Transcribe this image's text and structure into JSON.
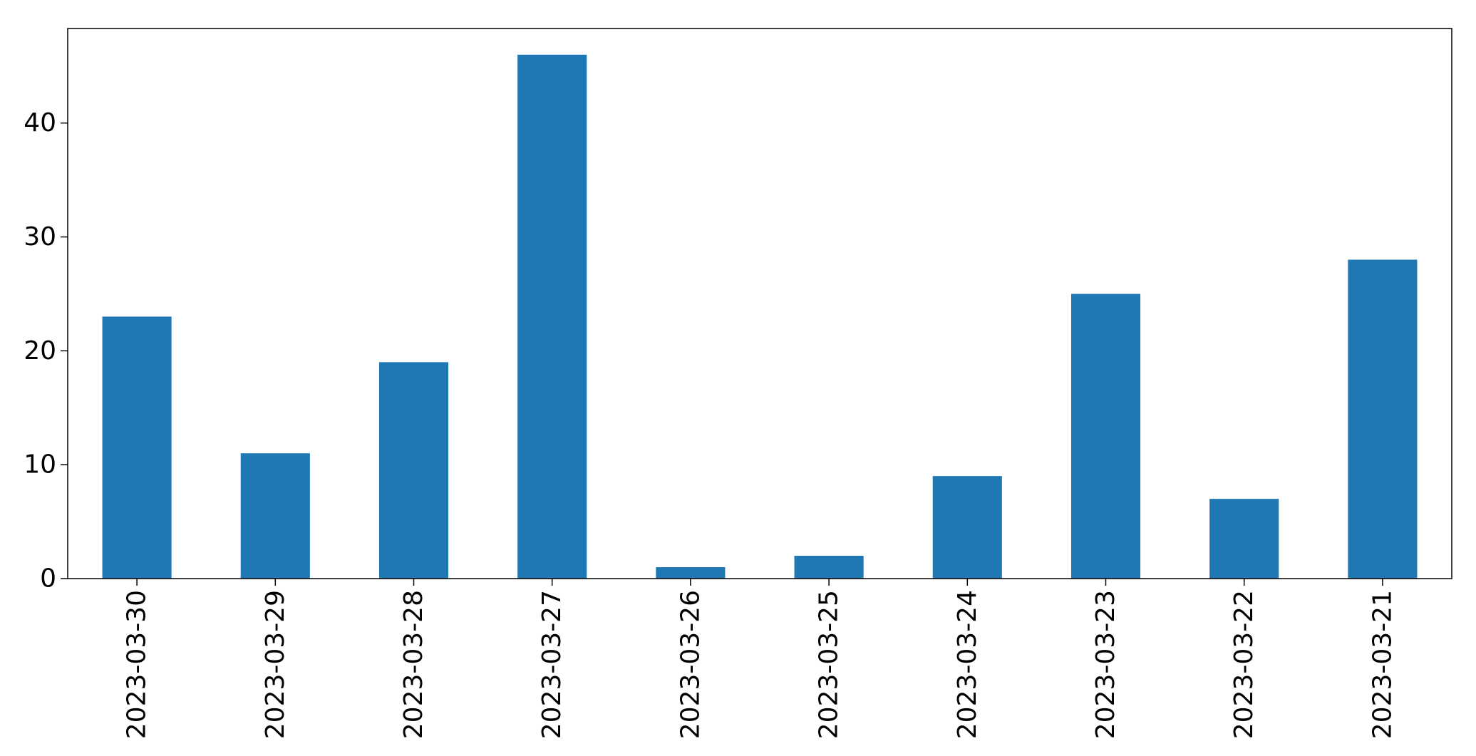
{
  "chart_data": {
    "type": "bar",
    "categories": [
      "2023-03-30",
      "2023-03-29",
      "2023-03-28",
      "2023-03-27",
      "2023-03-26",
      "2023-03-25",
      "2023-03-24",
      "2023-03-23",
      "2023-03-22",
      "2023-03-21"
    ],
    "values": [
      23,
      11,
      19,
      46,
      1,
      2,
      9,
      25,
      7,
      28
    ],
    "title": "",
    "xlabel": "",
    "ylabel": "",
    "ylim": [
      0,
      48.3
    ],
    "yticks": [
      0,
      10,
      20,
      30,
      40
    ],
    "bar_color": "#1f77b4",
    "grid": false,
    "legend": "none"
  }
}
